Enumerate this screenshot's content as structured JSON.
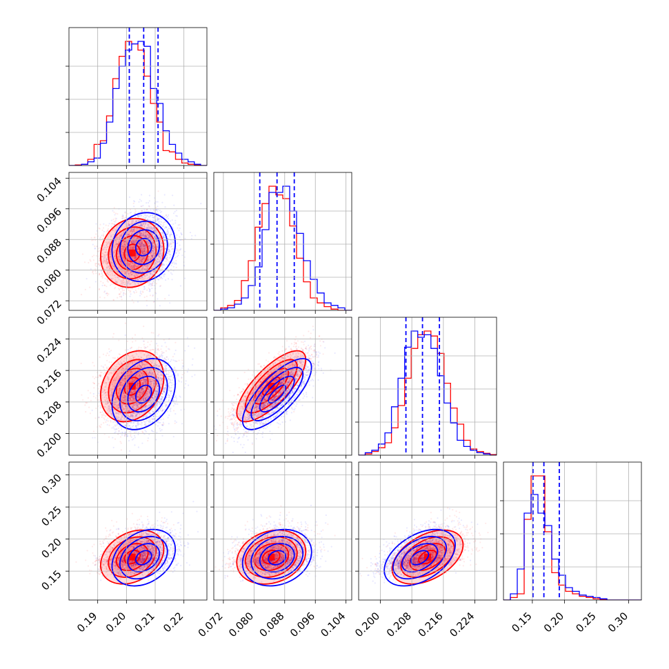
{
  "chart_data": {
    "type": "scatter",
    "subtype": "corner-plot",
    "title": "",
    "parameters": [
      "",
      "",
      "",
      ""
    ],
    "grid": true,
    "legend": "none",
    "colors": {
      "series_a": "#ff0000",
      "series_b": "#0000ff"
    },
    "ranges": [
      [
        0.18,
        0.228
      ],
      [
        0.0695,
        0.1055
      ],
      [
        0.1945,
        0.2295
      ],
      [
        0.105,
        0.32
      ]
    ],
    "ticks": [
      [
        0.19,
        0.2,
        0.21,
        0.22
      ],
      [
        0.072,
        0.08,
        0.088,
        0.096,
        0.104
      ],
      [
        0.2,
        0.208,
        0.216,
        0.224
      ],
      [
        0.15,
        0.2,
        0.25,
        0.3
      ]
    ],
    "tick_labels": [
      [
        "0.19",
        "0.20",
        "0.21",
        "0.22"
      ],
      [
        "0.072",
        "0.080",
        "0.088",
        "0.096",
        "0.104"
      ],
      [
        "0.200",
        "0.208",
        "0.216",
        "0.224"
      ],
      [
        "0.15",
        "0.20",
        "0.25",
        "0.30"
      ]
    ],
    "quantiles_dashed": [
      [
        0.201,
        0.206,
        0.211
      ],
      [
        0.0815,
        0.086,
        0.0905
      ],
      [
        0.2065,
        0.2107,
        0.215
      ],
      [
        0.151,
        0.168,
        0.192
      ]
    ],
    "series": [
      {
        "color": "#ff0000",
        "means": [
          0.202,
          0.0845,
          0.212,
          0.172
        ],
        "stds": [
          0.0055,
          0.0045,
          0.0045,
          0.021
        ],
        "correlations": {
          "0-1": 0.1,
          "0-2": 0.25,
          "0-3": 0.3,
          "1-2": 0.75,
          "1-3": 0.2,
          "2-3": 0.45
        },
        "histograms": [
          [
            0.0,
            0.005,
            0.01,
            0.05,
            0.17,
            0.2,
            0.4,
            0.7,
            0.88,
            1.0,
            0.98,
            0.93,
            0.72,
            0.5,
            0.35,
            0.12,
            0.11,
            0.05,
            0.02,
            0.01,
            0.005,
            0.0
          ],
          [
            0.0,
            0.02,
            0.04,
            0.08,
            0.24,
            0.4,
            0.67,
            0.86,
            1.0,
            0.93,
            0.9,
            0.68,
            0.42,
            0.23,
            0.1,
            0.06,
            0.03,
            0.01,
            0.0,
            0.0
          ],
          [
            0.0,
            0.01,
            0.03,
            0.06,
            0.1,
            0.22,
            0.4,
            0.62,
            0.86,
            0.97,
            1.0,
            0.96,
            0.82,
            0.58,
            0.38,
            0.25,
            0.12,
            0.05,
            0.03,
            0.015,
            0.005
          ],
          [
            0.0,
            0.02,
            0.05,
            0.65,
            1.0,
            1.0,
            0.55,
            0.22,
            0.12,
            0.07,
            0.05,
            0.03,
            0.02,
            0.01,
            0.005,
            0.0,
            0.0,
            0.0,
            0.0,
            0.0
          ]
        ]
      },
      {
        "color": "#0000ff",
        "means": [
          0.206,
          0.086,
          0.21,
          0.171
        ],
        "stds": [
          0.0055,
          0.0045,
          0.0045,
          0.022
        ],
        "correlations": {
          "0-1": 0.1,
          "0-2": 0.3,
          "0-3": 0.3,
          "1-2": 0.75,
          "1-3": 0.2,
          "2-3": 0.45
        },
        "histograms": [
          [
            0.0,
            0.0,
            0.01,
            0.03,
            0.06,
            0.18,
            0.35,
            0.62,
            0.8,
            0.93,
            0.98,
            1.0,
            0.96,
            0.62,
            0.5,
            0.28,
            0.17,
            0.1,
            0.05,
            0.03,
            0.01,
            0.0
          ],
          [
            0.0,
            0.01,
            0.02,
            0.05,
            0.1,
            0.2,
            0.35,
            0.65,
            0.95,
            0.95,
            1.0,
            0.8,
            0.62,
            0.4,
            0.25,
            0.14,
            0.06,
            0.04,
            0.02,
            0.0
          ],
          [
            0.0,
            0.02,
            0.04,
            0.09,
            0.18,
            0.39,
            0.62,
            0.87,
            1.0,
            0.95,
            0.97,
            0.86,
            0.64,
            0.42,
            0.26,
            0.12,
            0.07,
            0.04,
            0.02,
            0.01,
            0.0
          ],
          [
            0.0,
            0.05,
            0.25,
            0.7,
            0.85,
            0.7,
            0.6,
            0.33,
            0.2,
            0.1,
            0.07,
            0.04,
            0.03,
            0.02,
            0.01,
            0.0,
            0.0,
            0.0,
            0.0,
            0.0
          ]
        ]
      }
    ]
  }
}
